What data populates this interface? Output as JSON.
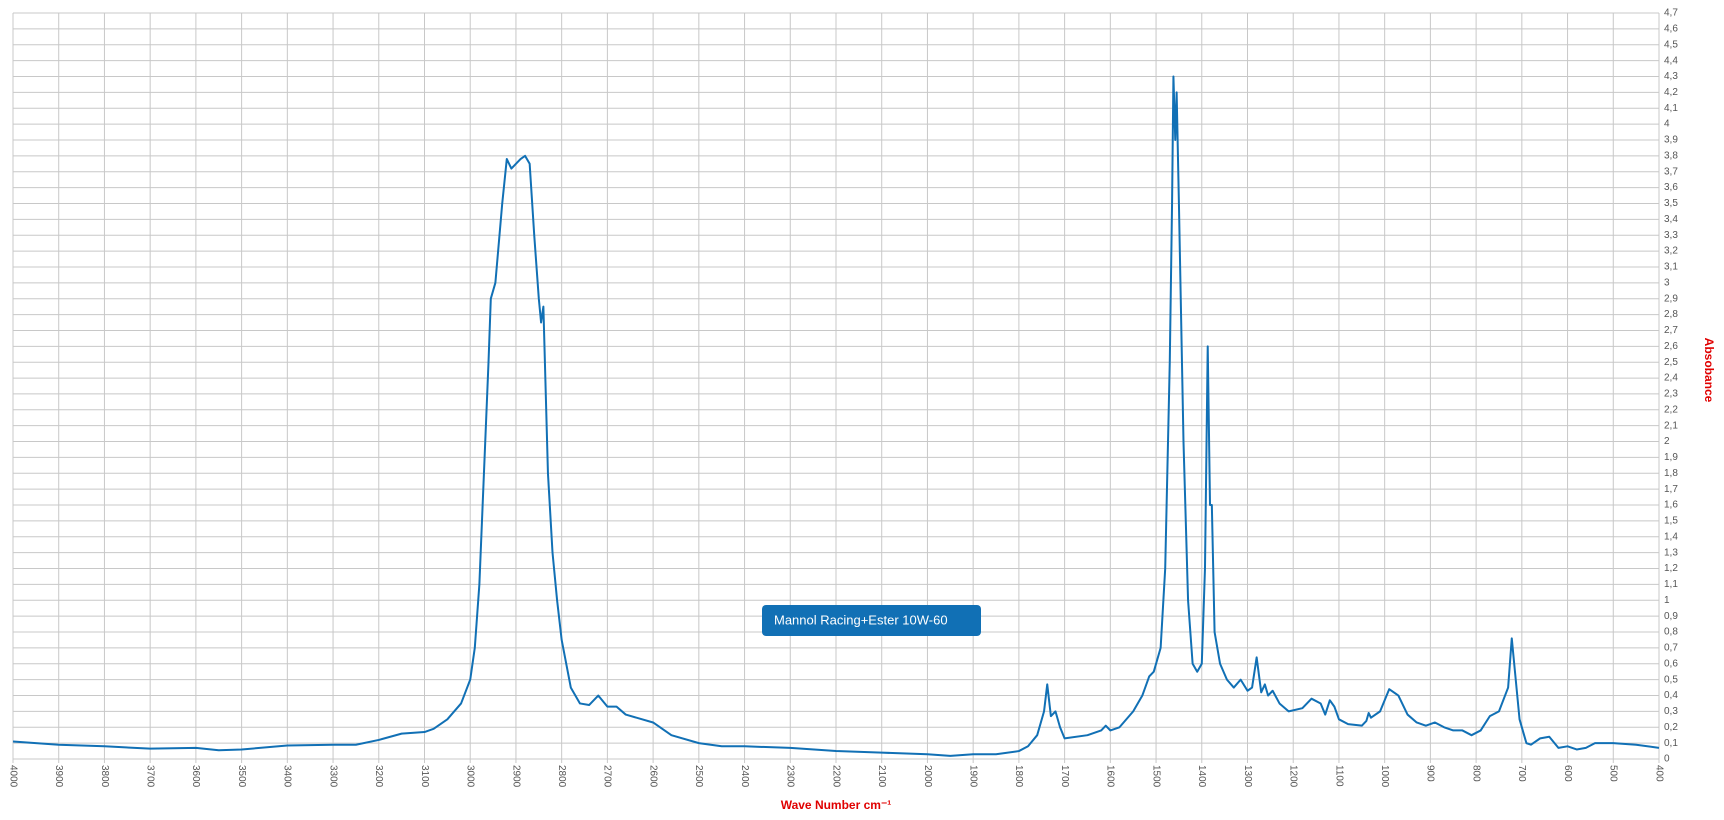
{
  "chart_data": {
    "type": "line",
    "xlabel": "Wave Number cm⁻¹",
    "ylabel": "Absobance",
    "x": [
      4000,
      3900,
      3800,
      3700,
      3600,
      3550,
      3500,
      3400,
      3300,
      3250,
      3200,
      3150,
      3100,
      3080,
      3050,
      3020,
      3000,
      2990,
      2980,
      2970,
      2960,
      2955,
      2945,
      2930,
      2920,
      2910,
      2900,
      2890,
      2880,
      2870,
      2860,
      2850,
      2845,
      2840,
      2830,
      2820,
      2810,
      2800,
      2780,
      2760,
      2740,
      2720,
      2700,
      2680,
      2660,
      2600,
      2560,
      2500,
      2450,
      2400,
      2300,
      2200,
      2100,
      2000,
      1950,
      1900,
      1850,
      1800,
      1780,
      1760,
      1745,
      1738,
      1730,
      1720,
      1710,
      1700,
      1650,
      1620,
      1610,
      1600,
      1580,
      1550,
      1530,
      1515,
      1505,
      1490,
      1480,
      1470,
      1465,
      1462,
      1458,
      1455,
      1450,
      1440,
      1430,
      1420,
      1410,
      1400,
      1393,
      1387,
      1382,
      1378,
      1372,
      1360,
      1345,
      1330,
      1315,
      1300,
      1290,
      1280,
      1270,
      1262,
      1255,
      1245,
      1230,
      1210,
      1180,
      1160,
      1140,
      1130,
      1120,
      1110,
      1100,
      1080,
      1050,
      1040,
      1035,
      1030,
      1010,
      990,
      970,
      950,
      930,
      910,
      890,
      870,
      850,
      830,
      810,
      790,
      770,
      750,
      730,
      722,
      715,
      705,
      690,
      680,
      660,
      640,
      620,
      600,
      580,
      560,
      540,
      500,
      450,
      400
    ],
    "series": [
      {
        "name": "Mannol Racing+Ester 10W-60",
        "color": "#1170b5",
        "values": [
          0.11,
          0.09,
          0.08,
          0.065,
          0.07,
          0.055,
          0.06,
          0.085,
          0.09,
          0.09,
          0.12,
          0.16,
          0.17,
          0.19,
          0.25,
          0.35,
          0.5,
          0.7,
          1.1,
          1.8,
          2.5,
          2.9,
          3.0,
          3.5,
          3.78,
          3.72,
          3.75,
          3.78,
          3.8,
          3.75,
          3.3,
          2.9,
          2.75,
          2.85,
          1.8,
          1.3,
          1.0,
          0.75,
          0.45,
          0.35,
          0.34,
          0.4,
          0.33,
          0.33,
          0.28,
          0.23,
          0.15,
          0.1,
          0.08,
          0.08,
          0.07,
          0.05,
          0.04,
          0.03,
          0.02,
          0.03,
          0.03,
          0.05,
          0.08,
          0.15,
          0.3,
          0.47,
          0.27,
          0.3,
          0.2,
          0.13,
          0.15,
          0.18,
          0.21,
          0.18,
          0.2,
          0.3,
          0.4,
          0.52,
          0.55,
          0.7,
          1.2,
          2.5,
          3.5,
          4.3,
          3.9,
          4.2,
          3.5,
          2.0,
          1.0,
          0.6,
          0.55,
          0.6,
          1.2,
          2.6,
          1.6,
          1.6,
          0.8,
          0.6,
          0.5,
          0.45,
          0.5,
          0.43,
          0.45,
          0.64,
          0.42,
          0.47,
          0.4,
          0.43,
          0.35,
          0.3,
          0.32,
          0.38,
          0.35,
          0.28,
          0.37,
          0.33,
          0.25,
          0.22,
          0.21,
          0.24,
          0.29,
          0.26,
          0.3,
          0.44,
          0.4,
          0.28,
          0.23,
          0.21,
          0.23,
          0.2,
          0.18,
          0.18,
          0.15,
          0.18,
          0.27,
          0.3,
          0.45,
          0.76,
          0.55,
          0.25,
          0.1,
          0.09,
          0.13,
          0.14,
          0.07,
          0.08,
          0.06,
          0.07,
          0.1,
          0.1,
          0.09,
          0.07
        ]
      }
    ],
    "xlim": [
      4000,
      400
    ],
    "xticks": [
      4000,
      3900,
      3800,
      3700,
      3600,
      3500,
      3400,
      3300,
      3200,
      3100,
      3000,
      2900,
      2800,
      2700,
      2600,
      2500,
      2400,
      2300,
      2200,
      2100,
      2000,
      1900,
      1800,
      1700,
      1600,
      1500,
      1400,
      1300,
      1200,
      1100,
      1000,
      900,
      800,
      700,
      600,
      500,
      400
    ],
    "ylim": [
      0,
      4.7
    ],
    "yticks": [
      0,
      {
        "value": 0.1,
        "label": "0,1"
      },
      {
        "value": 0.2,
        "label": "0,2"
      },
      {
        "value": 0.3,
        "label": "0,3"
      },
      {
        "value": 0.4,
        "label": "0,4"
      },
      {
        "value": 0.5,
        "label": "0,5"
      },
      {
        "value": 0.6,
        "label": "0,6"
      },
      {
        "value": 0.7,
        "label": "0,7"
      },
      {
        "value": 0.8,
        "label": "0,8"
      },
      {
        "value": 0.9,
        "label": "0,9"
      },
      1,
      {
        "value": 1.1,
        "label": "1,1"
      },
      {
        "value": 1.2,
        "label": "1,2"
      },
      {
        "value": 1.3,
        "label": "1,3"
      },
      {
        "value": 1.4,
        "label": "1,4"
      },
      {
        "value": 1.5,
        "label": "1,5"
      },
      {
        "value": 1.6,
        "label": "1,6"
      },
      {
        "value": 1.7,
        "label": "1,7"
      },
      {
        "value": 1.8,
        "label": "1,8"
      },
      {
        "value": 1.9,
        "label": "1,9"
      },
      2,
      {
        "value": 2.1,
        "label": "2,1"
      },
      {
        "value": 2.2,
        "label": "2,2"
      },
      {
        "value": 2.3,
        "label": "2,3"
      },
      {
        "value": 2.4,
        "label": "2,4"
      },
      {
        "value": 2.5,
        "label": "2,5"
      },
      {
        "value": 2.6,
        "label": "2,6"
      },
      {
        "value": 2.7,
        "label": "2,7"
      },
      {
        "value": 2.8,
        "label": "2,8"
      },
      {
        "value": 2.9,
        "label": "2,9"
      },
      3,
      {
        "value": 3.1,
        "label": "3,1"
      },
      {
        "value": 3.2,
        "label": "3,2"
      },
      {
        "value": 3.3,
        "label": "3,3"
      },
      {
        "value": 3.4,
        "label": "3,4"
      },
      {
        "value": 3.5,
        "label": "3,5"
      },
      {
        "value": 3.6,
        "label": "3,6"
      },
      {
        "value": 3.7,
        "label": "3,7"
      },
      {
        "value": 3.8,
        "label": "3,8"
      },
      {
        "value": 3.9,
        "label": "3,9"
      },
      4,
      {
        "value": 4.1,
        "label": "4,1"
      },
      {
        "value": 4.2,
        "label": "4,2"
      },
      {
        "value": 4.3,
        "label": "4,3"
      },
      {
        "value": 4.4,
        "label": "4,4"
      },
      {
        "value": 4.5,
        "label": "4,5"
      },
      {
        "value": 4.6,
        "label": "4,6"
      },
      {
        "value": 4.7,
        "label": "4,7"
      }
    ],
    "grid": true
  }
}
